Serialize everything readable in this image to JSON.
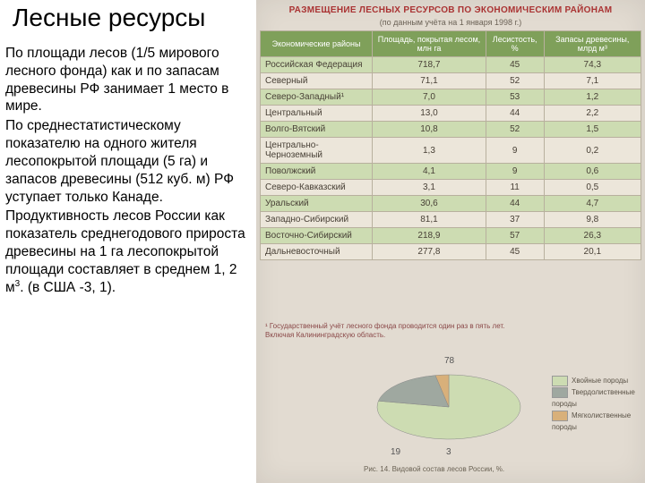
{
  "title": "Лесные ресурсы",
  "body": {
    "p1": "По площади лесов (1/5 мирового лесного фонда) как и по запасам древесины РФ занимает 1 место в мире.",
    "p2": "По среднестатистическому показателю на одного жителя лесопокрытой площади (5 га) и запасов древесины (512 куб. м) РФ уступает только Канаде.",
    "p3_a": "Продуктивность лесов России как показатель среднегодового прироста древесины на 1 га лесопокрытой площади составляет в среднем 1, 2 м",
    "p3_sup": "3",
    "p3_b": ". (в США -3, 1)."
  },
  "table": {
    "title": "РАЗМЕЩЕНИЕ ЛЕСНЫХ РЕСУРСОВ ПО ЭКОНОМИЧЕСКИМ РАЙОНАМ",
    "subtitle": "(по данным учёта на 1 января 1998 г.)",
    "headers": [
      "Экономические районы",
      "Площадь, покрытая лесом, млн га",
      "Лесистость, %",
      "Запасы древесины, млрд м³"
    ],
    "rows": [
      {
        "hl": true,
        "c": [
          "Российская Федерация",
          "718,7",
          "45",
          "74,3"
        ]
      },
      {
        "hl": false,
        "c": [
          "Северный",
          "71,1",
          "52",
          "7,1"
        ]
      },
      {
        "hl": true,
        "c": [
          "Северо-Западный¹",
          "7,0",
          "53",
          "1,2"
        ]
      },
      {
        "hl": false,
        "c": [
          "Центральный",
          "13,0",
          "44",
          "2,2"
        ]
      },
      {
        "hl": true,
        "c": [
          "Волго-Вятский",
          "10,8",
          "52",
          "1,5"
        ]
      },
      {
        "hl": false,
        "c": [
          "Центрально-Черноземный",
          "1,3",
          "9",
          "0,2"
        ]
      },
      {
        "hl": true,
        "c": [
          "Поволжский",
          "4,1",
          "9",
          "0,6"
        ]
      },
      {
        "hl": false,
        "c": [
          "Северо-Кавказский",
          "3,1",
          "11",
          "0,5"
        ]
      },
      {
        "hl": true,
        "c": [
          "Уральский",
          "30,6",
          "44",
          "4,7"
        ]
      },
      {
        "hl": false,
        "c": [
          "Западно-Сибирский",
          "81,1",
          "37",
          "9,8"
        ]
      },
      {
        "hl": true,
        "c": [
          "Восточно-Сибирский",
          "218,9",
          "57",
          "26,3"
        ]
      },
      {
        "hl": false,
        "c": [
          "Дальневосточный",
          "277,8",
          "45",
          "20,1"
        ]
      }
    ],
    "footnote": "¹ Государственный учёт лесного фонда проводится один раз в пять лет.\n  Включая Калининградскую область."
  },
  "pie": {
    "slices": [
      {
        "label": "78",
        "value": 78,
        "color": "#cddcb2"
      },
      {
        "label": "19",
        "value": 19,
        "color": "#9fa8a0"
      },
      {
        "label": "3",
        "value": 3,
        "color": "#d8b07a"
      }
    ],
    "legend": [
      {
        "color": "#cddcb2",
        "label": "Хвойные породы"
      },
      {
        "color": "#9fa8a0",
        "label": "Твердолиственные породы"
      },
      {
        "color": "#d8b07a",
        "label": "Мягколиственные породы"
      }
    ],
    "caption": "Рис. 14.  Видовой состав лесов России, %."
  }
}
